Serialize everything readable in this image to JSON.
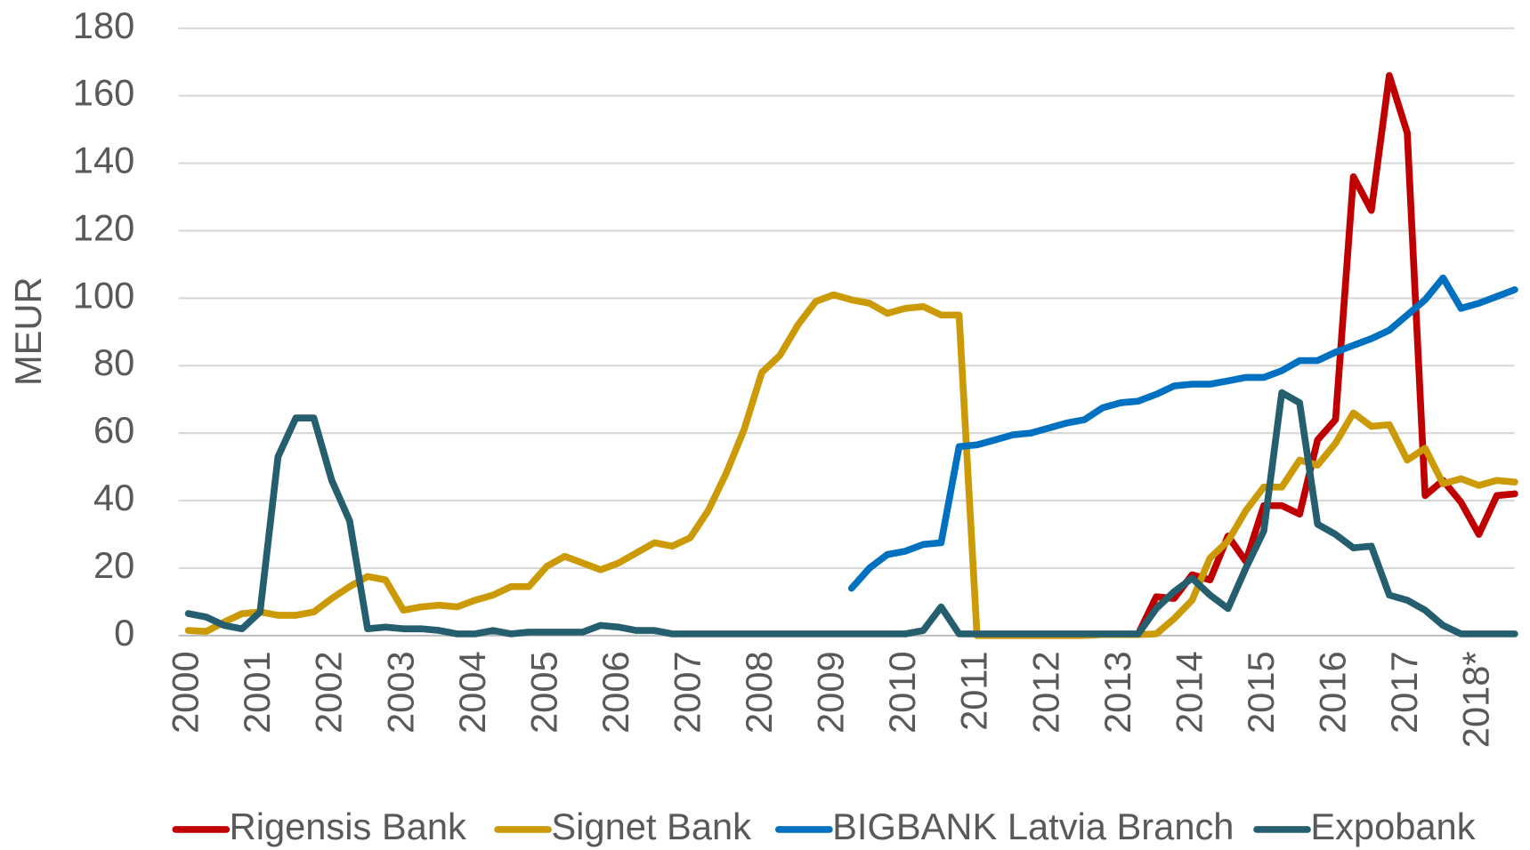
{
  "chart_data": {
    "type": "line",
    "ylabel": "MEUR",
    "categories": [
      "2000",
      null,
      null,
      null,
      "2001",
      null,
      null,
      null,
      "2002",
      null,
      null,
      null,
      "2003",
      null,
      null,
      null,
      "2004",
      null,
      null,
      null,
      "2005",
      null,
      null,
      null,
      "2006",
      null,
      null,
      null,
      "2007",
      null,
      null,
      null,
      "2008",
      null,
      null,
      null,
      "2009",
      null,
      null,
      null,
      "2010",
      null,
      null,
      null,
      "2011",
      null,
      null,
      null,
      "2012",
      null,
      null,
      null,
      "2013",
      null,
      null,
      null,
      "2014",
      null,
      null,
      null,
      "2015",
      null,
      null,
      null,
      "2016",
      null,
      null,
      null,
      "2017",
      null,
      null,
      null,
      "2018*",
      null,
      null
    ],
    "series": [
      {
        "name": "Rigensis Bank",
        "color": "#c00000",
        "values": [
          null,
          null,
          null,
          null,
          null,
          null,
          null,
          null,
          null,
          null,
          null,
          null,
          null,
          null,
          null,
          null,
          null,
          null,
          null,
          null,
          null,
          null,
          null,
          null,
          null,
          null,
          null,
          null,
          null,
          null,
          null,
          null,
          null,
          null,
          null,
          null,
          null,
          null,
          null,
          null,
          null,
          null,
          null,
          null,
          null,
          null,
          null,
          null,
          null,
          null,
          null,
          null,
          null,
          0.5,
          11.5,
          11,
          18,
          16.5,
          29.5,
          22,
          38.5,
          38.5,
          36,
          58,
          64,
          136,
          126,
          166,
          149,
          41.5,
          46,
          39.5,
          30,
          41.5,
          42
        ]
      },
      {
        "name": "Signet Bank",
        "color": "#cc9a06",
        "values": [
          1.5,
          1.2,
          4,
          6.5,
          7,
          6,
          6,
          7,
          11,
          14.5,
          17.5,
          16.5,
          7.5,
          8.5,
          9,
          8.5,
          10.5,
          12,
          14.5,
          14.5,
          20.5,
          23.5,
          21.5,
          19.5,
          21.5,
          24.5,
          27.5,
          26.5,
          29,
          37,
          48,
          61,
          78,
          83,
          92,
          99,
          101,
          99.5,
          98.5,
          95.5,
          97,
          97.5,
          95,
          95,
          0,
          0,
          0,
          0,
          0,
          0,
          0,
          0.3,
          0.3,
          0.3,
          0.5,
          5,
          10.5,
          23,
          28,
          37,
          44,
          44,
          52,
          50.5,
          57,
          66,
          62,
          62.5,
          52,
          55.5,
          45,
          46.5,
          44.5,
          46,
          45.5
        ]
      },
      {
        "name": "BIGBANK Latvia Branch",
        "color": "#0070c0",
        "values": [
          null,
          null,
          null,
          null,
          null,
          null,
          null,
          null,
          null,
          null,
          null,
          null,
          null,
          null,
          null,
          null,
          null,
          null,
          null,
          null,
          null,
          null,
          null,
          null,
          null,
          null,
          null,
          null,
          null,
          null,
          null,
          null,
          null,
          null,
          null,
          null,
          null,
          14,
          20,
          24,
          25,
          27,
          27.5,
          56,
          56.5,
          58,
          59.5,
          60,
          61.5,
          63,
          64,
          67.5,
          69,
          69.5,
          71.5,
          74,
          74.5,
          74.5,
          75.5,
          76.5,
          76.5,
          78.5,
          81.5,
          81.5,
          84,
          86,
          88,
          90.5,
          95,
          99.5,
          106,
          97,
          98.5,
          100.5,
          102.5
        ]
      },
      {
        "name": "Expobank",
        "color": "#255e6e",
        "values": [
          6.5,
          5.5,
          3,
          2,
          7,
          53,
          64.5,
          64.5,
          46,
          34,
          2,
          2.5,
          2,
          2,
          1.5,
          0.5,
          0.5,
          1.5,
          0.5,
          1,
          1,
          1,
          1,
          3,
          2.5,
          1.5,
          1.5,
          0.5,
          0.5,
          0.5,
          0.5,
          0.5,
          0.5,
          0.5,
          0.5,
          0.5,
          0.5,
          0.5,
          0.5,
          0.5,
          0.5,
          1.5,
          8.5,
          0.5,
          0.5,
          0.5,
          0.5,
          0.5,
          0.5,
          0.5,
          0.5,
          0.5,
          0.5,
          0.5,
          8,
          13,
          17,
          12,
          8,
          20,
          31,
          72,
          69,
          33,
          30,
          26,
          26.5,
          12,
          10.5,
          7.5,
          3,
          0.5,
          0.5,
          0.5,
          0.5
        ]
      }
    ],
    "ylim": [
      0,
      180
    ],
    "yticks": [
      0,
      20,
      40,
      60,
      80,
      100,
      120,
      140,
      160,
      180
    ],
    "grid": true,
    "legend": "bottom"
  }
}
